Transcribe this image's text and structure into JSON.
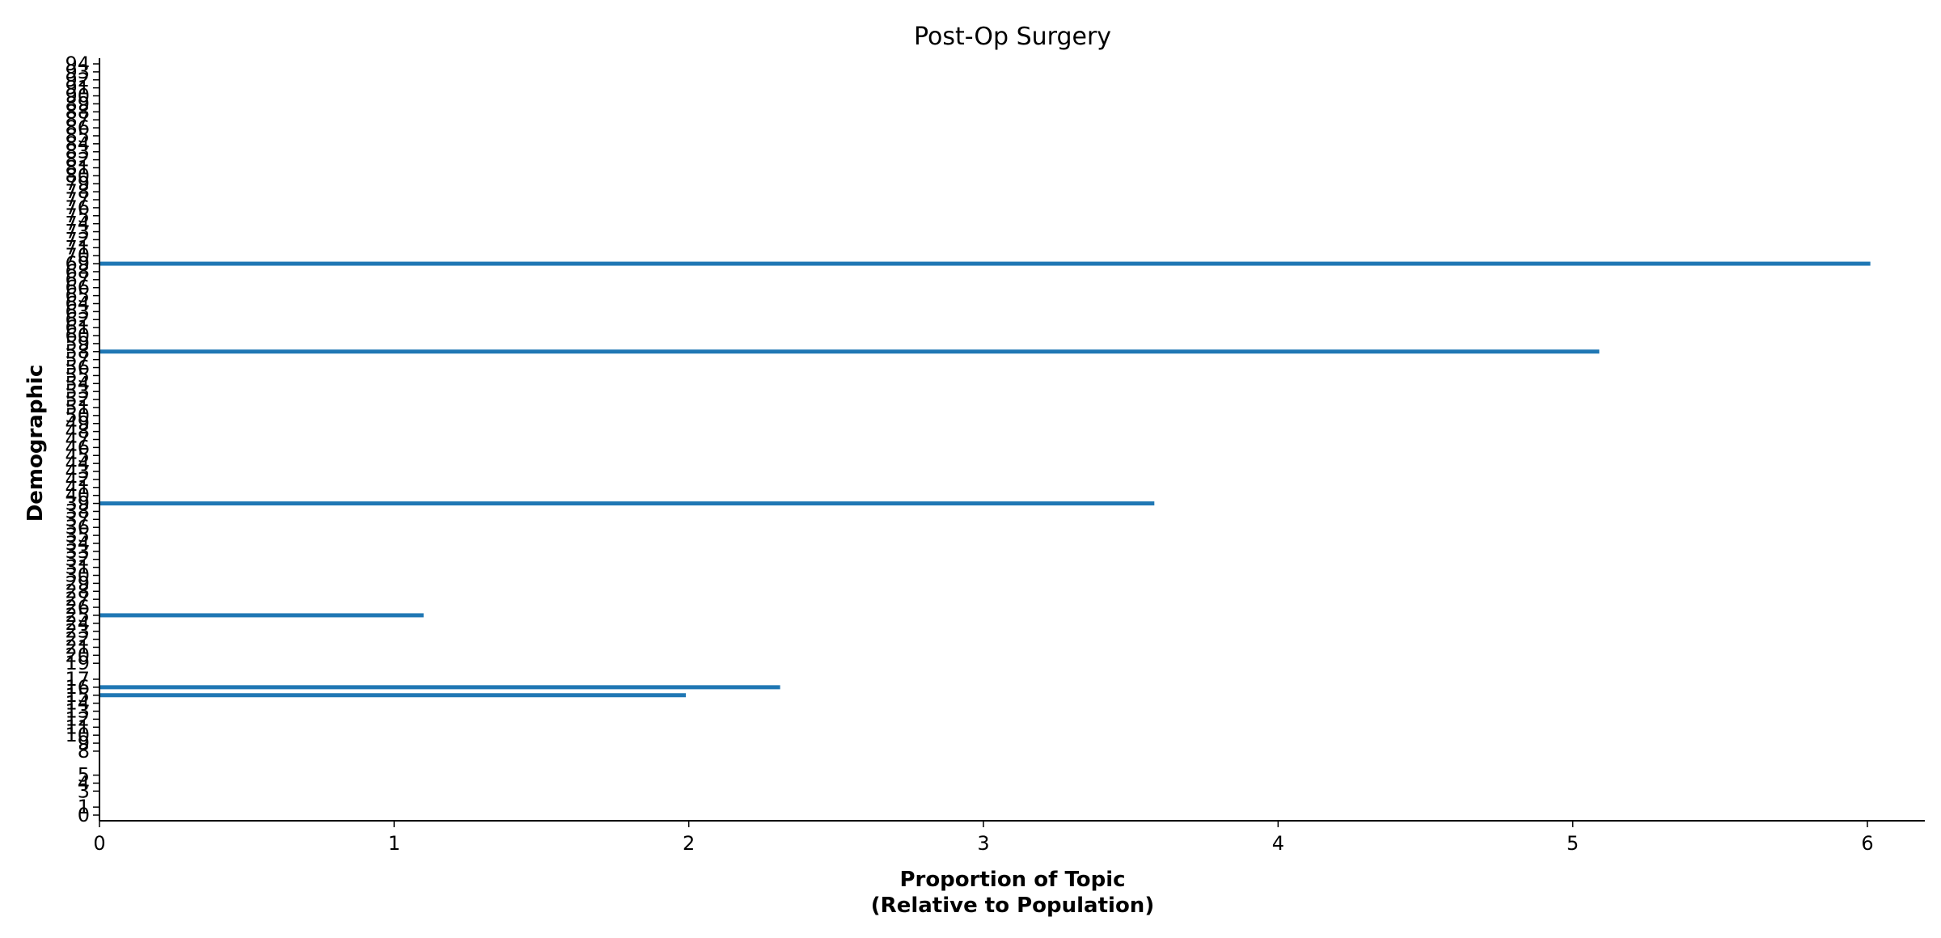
{
  "chart_data": {
    "type": "bar",
    "orientation": "horizontal",
    "title": "Post-Op Surgery",
    "xlabel_line1": "Proportion of Topic",
    "xlabel_line2": "(Relative to Population)",
    "ylabel": "Demographic",
    "xlim": [
      0,
      6.3
    ],
    "ylim": [
      0,
      94
    ],
    "x_ticks": [
      "0",
      "1",
      "2",
      "3",
      "4",
      "5",
      "6"
    ],
    "y_ticks": [
      "0",
      "1",
      "3",
      "4",
      "5",
      "8",
      "9",
      "10",
      "11",
      "12",
      "13",
      "14",
      "15",
      "16",
      "17",
      "19",
      "20",
      "21",
      "22",
      "23",
      "24",
      "25",
      "26",
      "27",
      "28",
      "29",
      "30",
      "31",
      "32",
      "33",
      "34",
      "35",
      "36",
      "37",
      "38",
      "39",
      "40",
      "41",
      "42",
      "43",
      "44",
      "45",
      "46",
      "47",
      "48",
      "49",
      "50",
      "51",
      "52",
      "53",
      "54",
      "55",
      "56",
      "57",
      "58",
      "59",
      "60",
      "61",
      "62",
      "63",
      "64",
      "65",
      "66",
      "67",
      "68",
      "69",
      "70",
      "71",
      "72",
      "73",
      "74",
      "75",
      "76",
      "77",
      "78",
      "79",
      "80",
      "81",
      "82",
      "83",
      "84",
      "85",
      "86",
      "87",
      "88",
      "89",
      "90",
      "91",
      "92",
      "93",
      "94"
    ],
    "grid": false,
    "bar_color": "#1f77b4",
    "bars": [
      {
        "demographic": 15,
        "value": 1.99
      },
      {
        "demographic": 16,
        "value": 2.31
      },
      {
        "demographic": 25,
        "value": 1.1
      },
      {
        "demographic": 39,
        "value": 3.58
      },
      {
        "demographic": 58,
        "value": 5.09
      },
      {
        "demographic": 69,
        "value": 6.01
      }
    ]
  }
}
